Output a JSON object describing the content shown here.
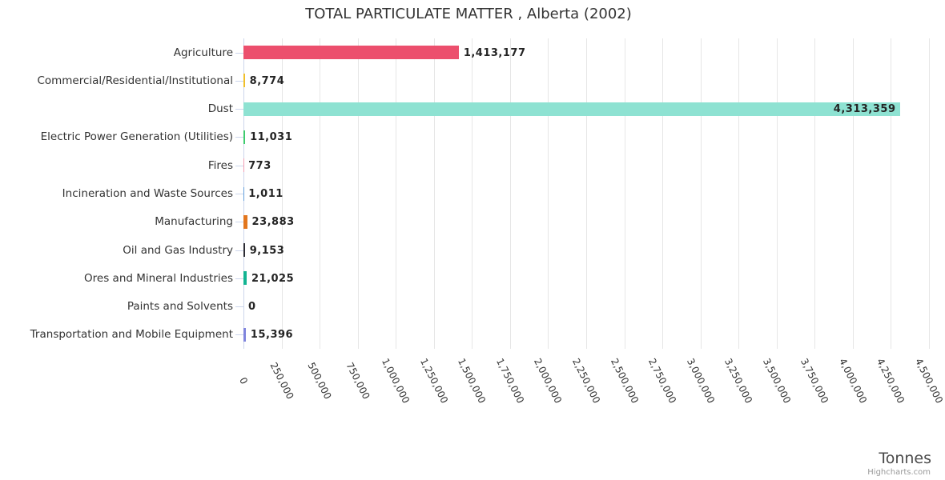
{
  "title": "TOTAL PARTICULATE MATTER , Alberta (2002)",
  "chart_data": {
    "type": "bar",
    "orientation": "horizontal",
    "title": "TOTAL PARTICULATE MATTER , Alberta (2002)",
    "xlabel": "Tonnes",
    "ylabel": "",
    "xlim": [
      0,
      4500000
    ],
    "tick_interval": 250000,
    "grid": true,
    "legend": false,
    "x_ticks": [
      "0",
      "250,000",
      "500,000",
      "750,000",
      "1,000,000",
      "1,250,000",
      "1,500,000",
      "1,750,000",
      "2,000,000",
      "2,250,000",
      "2,500,000",
      "2,750,000",
      "3,000,000",
      "3,250,000",
      "3,500,000",
      "3,750,000",
      "4,000,000",
      "4,250,000",
      "4,500,000"
    ],
    "items": [
      {
        "category": "Agriculture",
        "value": 1413177,
        "label": "1,413,177",
        "color": "#ec4f6d",
        "label_inside": false
      },
      {
        "category": "Commercial/Residential/Institutional",
        "value": 8774,
        "label": "8,774",
        "color": "#f0bf2a",
        "label_inside": false
      },
      {
        "category": "Dust",
        "value": 4313359,
        "label": "4,313,359",
        "color": "#8ee2d2",
        "label_inside": true
      },
      {
        "category": "Electric Power Generation (Utilities)",
        "value": 11031,
        "label": "11,031",
        "color": "#3ecb6e",
        "label_inside": false
      },
      {
        "category": "Fires",
        "value": 773,
        "label": "773",
        "color": "#f19fb5",
        "label_inside": false
      },
      {
        "category": "Incineration and Waste Sources",
        "value": 1011,
        "label": "1,011",
        "color": "#64a0dc",
        "label_inside": false
      },
      {
        "category": "Manufacturing",
        "value": 23883,
        "label": "23,883",
        "color": "#e2761e",
        "label_inside": false
      },
      {
        "category": "Oil and Gas Industry",
        "value": 9153,
        "label": "9,153",
        "color": "#2c2c34",
        "label_inside": false
      },
      {
        "category": "Ores and Mineral Industries",
        "value": 21025,
        "label": "21,025",
        "color": "#12b492",
        "label_inside": false
      },
      {
        "category": "Paints and Solvents",
        "value": 0,
        "label": "0",
        "color": "#b95cc9",
        "label_inside": false
      },
      {
        "category": "Transportation and Mobile Equipment",
        "value": 15396,
        "label": "15,396",
        "color": "#8085dd",
        "label_inside": false
      }
    ],
    "credits": "Highcharts.com"
  },
  "colors": {
    "axis_line": "#ccd6eb",
    "gridline": "#e6e6e6",
    "category_label": "#333333",
    "value_label": "#242424",
    "title": "#333333",
    "axis_title": "#4a4a4a",
    "credits": "#999999"
  }
}
